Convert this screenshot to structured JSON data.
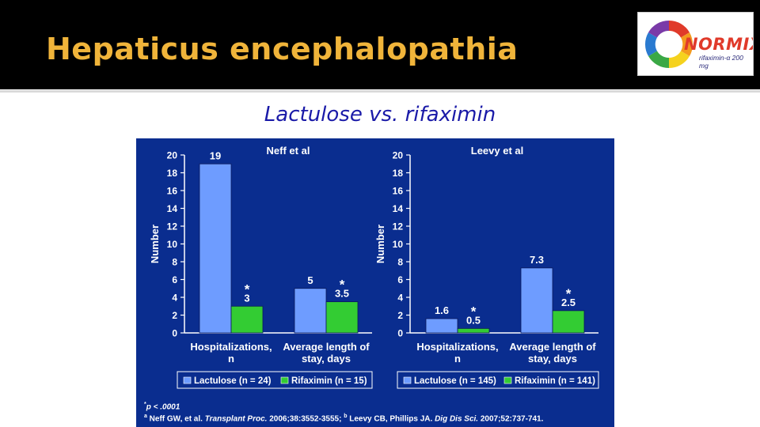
{
  "slide": {
    "title": "Hepaticus encephalopathia",
    "subtitle": "Lactulose vs. rifaximin"
  },
  "logo": {
    "name": "NORMIX",
    "tagline": "rifaximin-α 200 mg"
  },
  "colors": {
    "title": "#f0b43a",
    "subtitle": "#1a1aa8",
    "panel_background": "#0a2d8f",
    "lactulose_bar": "#6e9cff",
    "rifaximin_bar": "#33cc33"
  },
  "chart_data": [
    {
      "type": "bar",
      "title": "Neff et al",
      "ylabel": "Number",
      "ylim": [
        0,
        20
      ],
      "yticks": [
        0,
        2,
        4,
        6,
        8,
        10,
        12,
        14,
        16,
        18,
        20
      ],
      "categories": [
        [
          "Hospitalizations,",
          "n"
        ],
        [
          "Average length of",
          "stay, days"
        ]
      ],
      "series": [
        {
          "name": "Lactulose (n = 24)",
          "values": [
            19,
            5
          ],
          "labels": [
            "19",
            "5"
          ],
          "significant": [
            false,
            false
          ]
        },
        {
          "name": "Rifaximin (n = 15)",
          "values": [
            3,
            3.5
          ],
          "labels": [
            "3",
            "3.5"
          ],
          "significant": [
            true,
            true
          ]
        }
      ]
    },
    {
      "type": "bar",
      "title": "Leevy et al",
      "ylabel": "Number",
      "ylim": [
        0,
        20
      ],
      "yticks": [
        0,
        2,
        4,
        6,
        8,
        10,
        12,
        14,
        16,
        18,
        20
      ],
      "categories": [
        [
          "Hospitalizations,",
          "n"
        ],
        [
          "Average length of",
          "stay, days"
        ]
      ],
      "series": [
        {
          "name": "Lactulose (n = 145)",
          "values": [
            1.6,
            7.3
          ],
          "labels": [
            "1.6",
            "7.3"
          ],
          "significant": [
            false,
            false
          ]
        },
        {
          "name": "Rifaximin (n = 141)",
          "values": [
            0.5,
            2.5
          ],
          "labels": [
            "0.5",
            "2.5"
          ],
          "significant": [
            true,
            true
          ]
        }
      ]
    }
  ],
  "footnotes": {
    "pvalue_mark": "*",
    "pvalue_text": "p < .0001",
    "ref_a_mark": "a",
    "ref_a_text": " Neff GW, et al. ",
    "ref_a_journal": "Transplant Proc.",
    "ref_a_cite": " 2006;38:3552-3555; ",
    "ref_b_mark": "b",
    "ref_b_text": " Leevy CB, Phillips JA. ",
    "ref_b_journal": "Dig Dis Sci.",
    "ref_b_cite": " 2007;52:737-741."
  },
  "significance_marker": "*"
}
